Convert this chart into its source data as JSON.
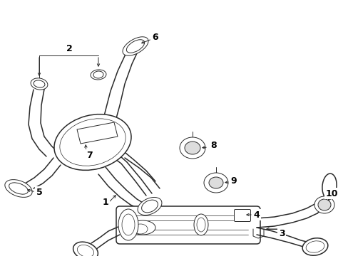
{
  "bg_color": "#ffffff",
  "line_color": "#2a2a2a",
  "figsize": [
    4.89,
    3.6
  ],
  "dpi": 100,
  "lw_main": 1.1,
  "lw_thin": 0.7,
  "lw_detail": 0.5
}
